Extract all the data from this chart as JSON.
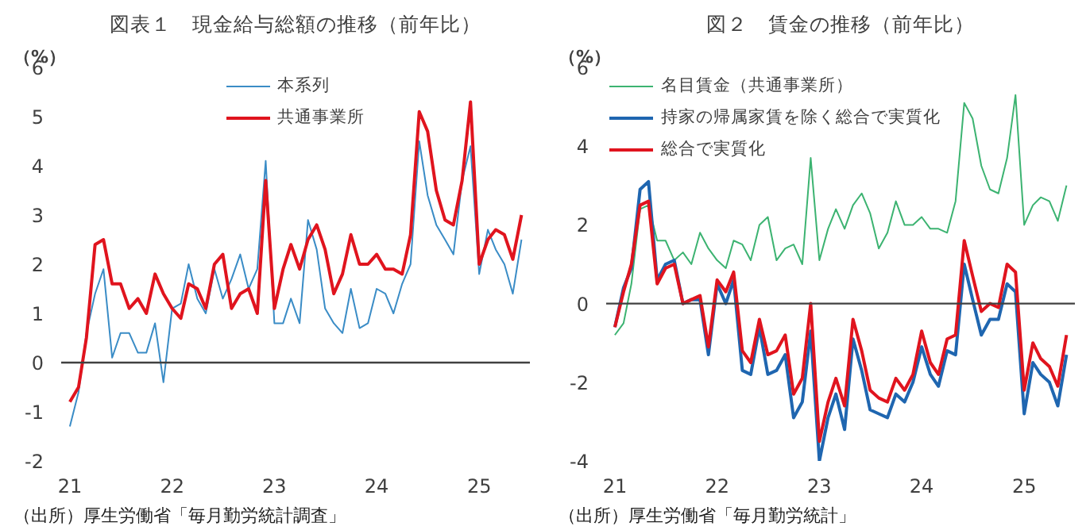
{
  "chart_data": [
    {
      "type": "line",
      "title": "図表１　現金給与総額の推移（前年比）",
      "ylabel": "（%）",
      "x": [
        "2021-01",
        "2021-02",
        "2021-03",
        "2021-04",
        "2021-05",
        "2021-06",
        "2021-07",
        "2021-08",
        "2021-09",
        "2021-10",
        "2021-11",
        "2021-12",
        "2022-01",
        "2022-02",
        "2022-03",
        "2022-04",
        "2022-05",
        "2022-06",
        "2022-07",
        "2022-08",
        "2022-09",
        "2022-10",
        "2022-11",
        "2022-12",
        "2023-01",
        "2023-02",
        "2023-03",
        "2023-04",
        "2023-05",
        "2023-06",
        "2023-07",
        "2023-08",
        "2023-09",
        "2023-10",
        "2023-11",
        "2023-12",
        "2024-01",
        "2024-02",
        "2024-03",
        "2024-04",
        "2024-05",
        "2024-06",
        "2024-07",
        "2024-08",
        "2024-09",
        "2024-10",
        "2024-11",
        "2024-12",
        "2025-01",
        "2025-02",
        "2025-03",
        "2025-04",
        "2025-05",
        "2025-06"
      ],
      "series": [
        {
          "name": "本系列",
          "color": "#3a8cc6",
          "values": [
            -1.3,
            -0.6,
            0.6,
            1.4,
            1.9,
            0.1,
            0.6,
            0.6,
            0.2,
            0.2,
            0.8,
            -0.4,
            1.1,
            1.2,
            2.0,
            1.3,
            1.0,
            1.9,
            1.3,
            1.7,
            2.2,
            1.5,
            1.9,
            4.1,
            0.8,
            0.8,
            1.3,
            0.8,
            2.9,
            2.3,
            1.1,
            0.8,
            0.6,
            1.5,
            0.7,
            0.8,
            1.5,
            1.4,
            1.0,
            1.6,
            2.0,
            4.5,
            3.4,
            2.8,
            2.5,
            2.2,
            3.7,
            4.4,
            1.8,
            2.7,
            2.3,
            2.0,
            1.4,
            2.5
          ]
        },
        {
          "name": "共通事業所",
          "color": "#e0141e",
          "values": [
            -0.8,
            -0.5,
            0.5,
            2.4,
            2.5,
            1.6,
            1.6,
            1.1,
            1.3,
            1.0,
            1.8,
            1.4,
            1.1,
            0.9,
            1.6,
            1.5,
            1.1,
            2.0,
            2.2,
            1.1,
            1.4,
            1.5,
            1.0,
            3.7,
            1.1,
            1.9,
            2.4,
            1.9,
            2.5,
            2.8,
            2.3,
            1.4,
            1.8,
            2.6,
            2.0,
            2.0,
            2.2,
            1.9,
            1.9,
            1.8,
            2.6,
            5.1,
            4.7,
            3.5,
            2.9,
            2.8,
            3.7,
            5.3,
            2.0,
            2.5,
            2.7,
            2.6,
            2.1,
            3.0
          ]
        }
      ],
      "xlim": [
        "2020-12",
        "2025-07"
      ],
      "xticks": [
        {
          "value": "2021-01",
          "label": "21"
        },
        {
          "value": "2022-01",
          "label": "22"
        },
        {
          "value": "2023-01",
          "label": "23"
        },
        {
          "value": "2024-01",
          "label": "24"
        },
        {
          "value": "2025-01",
          "label": "25"
        }
      ],
      "ylim": [
        -2,
        6
      ],
      "yticks": [
        -2,
        -1,
        0,
        1,
        2,
        3,
        4,
        5,
        6
      ],
      "ref_lines": [
        {
          "axis": "y",
          "value": 0,
          "color": "#404040"
        }
      ],
      "grid": false,
      "legend": "top",
      "marker": "none",
      "annotations": [
        "（出所）厚生労働省「毎月勤労統計調査」"
      ]
    },
    {
      "type": "line",
      "title": "図２　賃金の推移（前年比）",
      "ylabel": "（%）",
      "x": [
        "2021-01",
        "2021-02",
        "2021-03",
        "2021-04",
        "2021-05",
        "2021-06",
        "2021-07",
        "2021-08",
        "2021-09",
        "2021-10",
        "2021-11",
        "2021-12",
        "2022-01",
        "2022-02",
        "2022-03",
        "2022-04",
        "2022-05",
        "2022-06",
        "2022-07",
        "2022-08",
        "2022-09",
        "2022-10",
        "2022-11",
        "2022-12",
        "2023-01",
        "2023-02",
        "2023-03",
        "2023-04",
        "2023-05",
        "2023-06",
        "2023-07",
        "2023-08",
        "2023-09",
        "2023-10",
        "2023-11",
        "2023-12",
        "2024-01",
        "2024-02",
        "2024-03",
        "2024-04",
        "2024-05",
        "2024-06",
        "2024-07",
        "2024-08",
        "2024-09",
        "2024-10",
        "2024-11",
        "2024-12",
        "2025-01",
        "2025-02",
        "2025-03",
        "2025-04",
        "2025-05",
        "2025-06"
      ],
      "series": [
        {
          "name": "名目賃金（共通事業所）",
          "color": "#3cb371",
          "values": [
            -0.8,
            -0.5,
            0.5,
            2.4,
            2.5,
            1.6,
            1.6,
            1.1,
            1.3,
            1.0,
            1.8,
            1.4,
            1.1,
            0.9,
            1.6,
            1.5,
            1.1,
            2.0,
            2.2,
            1.1,
            1.4,
            1.5,
            1.0,
            3.7,
            1.1,
            1.9,
            2.4,
            1.9,
            2.5,
            2.8,
            2.3,
            1.4,
            1.8,
            2.6,
            2.0,
            2.0,
            2.2,
            1.9,
            1.9,
            1.8,
            2.6,
            5.1,
            4.7,
            3.5,
            2.9,
            2.8,
            3.7,
            5.3,
            2.0,
            2.5,
            2.7,
            2.6,
            2.1,
            3.0
          ]
        },
        {
          "name": "持家の帰属家賃を除く総合で実質化",
          "color": "#1f66b0",
          "values": [
            -0.6,
            0.4,
            0.9,
            2.9,
            3.1,
            0.6,
            1.0,
            1.1,
            0.0,
            0.1,
            0.1,
            -1.3,
            0.5,
            0.0,
            0.6,
            -1.7,
            -1.8,
            -0.6,
            -1.8,
            -1.7,
            -1.3,
            -2.9,
            -2.5,
            -0.7,
            -4.0,
            -2.9,
            -2.3,
            -3.2,
            -0.9,
            -1.7,
            -2.7,
            -2.8,
            -2.9,
            -2.3,
            -2.5,
            -2.0,
            -1.1,
            -1.8,
            -2.1,
            -1.2,
            -1.3,
            1.0,
            0.1,
            -0.8,
            -0.4,
            -0.4,
            0.5,
            0.3,
            -2.8,
            -1.5,
            -1.8,
            -2.0,
            -2.6,
            -1.3
          ]
        },
        {
          "name": "総合で実質化",
          "color": "#e0141e",
          "values": [
            -0.6,
            0.3,
            1.0,
            2.5,
            2.6,
            0.5,
            0.9,
            1.0,
            0.0,
            0.1,
            0.2,
            -1.1,
            0.6,
            0.3,
            0.8,
            -1.2,
            -1.5,
            -0.4,
            -1.3,
            -1.2,
            -0.8,
            -2.3,
            -1.9,
            0.0,
            -3.5,
            -2.5,
            -1.9,
            -2.6,
            -0.4,
            -1.2,
            -2.2,
            -2.4,
            -2.5,
            -1.9,
            -2.2,
            -1.8,
            -0.7,
            -1.5,
            -1.8,
            -0.9,
            -0.8,
            1.6,
            0.7,
            -0.2,
            0.0,
            -0.1,
            1.0,
            0.8,
            -2.2,
            -1.0,
            -1.4,
            -1.6,
            -2.1,
            -0.8
          ]
        }
      ],
      "xlim": [
        "2020-12",
        "2025-07"
      ],
      "xticks": [
        {
          "value": "2021-01",
          "label": "21"
        },
        {
          "value": "2022-01",
          "label": "22"
        },
        {
          "value": "2023-01",
          "label": "23"
        },
        {
          "value": "2024-01",
          "label": "24"
        },
        {
          "value": "2025-01",
          "label": "25"
        }
      ],
      "ylim": [
        -4,
        6
      ],
      "yticks": [
        -4,
        -2,
        0,
        2,
        4,
        6
      ],
      "ref_lines": [
        {
          "axis": "y",
          "value": 0,
          "color": "#404040"
        }
      ],
      "grid": false,
      "legend": "top left",
      "marker": "none",
      "annotations": [
        "（出所）厚生労働省「毎月勤労統計」"
      ]
    }
  ]
}
